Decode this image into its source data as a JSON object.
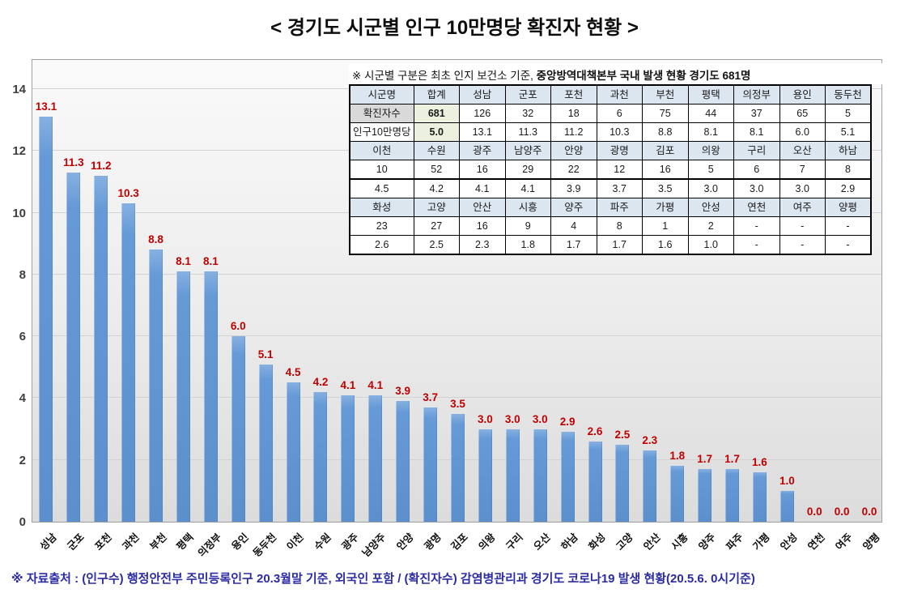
{
  "chart_data": {
    "type": "bar",
    "title": "< 경기도 시군별 인구 10만명당 확진자 현황 >",
    "categories": [
      "성남",
      "군포",
      "포천",
      "과천",
      "부천",
      "평택",
      "의정부",
      "용인",
      "동두천",
      "이천",
      "수원",
      "광주",
      "남양주",
      "안양",
      "광명",
      "김포",
      "의왕",
      "구리",
      "오산",
      "하남",
      "화성",
      "고양",
      "안산",
      "시흥",
      "양주",
      "파주",
      "가평",
      "안성",
      "연천",
      "여주",
      "양평"
    ],
    "values": [
      13.1,
      11.3,
      11.2,
      10.3,
      8.8,
      8.1,
      8.1,
      6.0,
      5.1,
      4.5,
      4.2,
      4.1,
      4.1,
      3.9,
      3.7,
      3.5,
      3.0,
      3.0,
      3.0,
      2.9,
      2.6,
      2.5,
      2.3,
      1.8,
      1.7,
      1.7,
      1.6,
      1.0,
      0.0,
      0.0,
      0.0
    ],
    "value_labels": [
      "13.1",
      "11.3",
      "11.2",
      "10.3",
      "8.8",
      "8.1",
      "8.1",
      "6.0",
      "5.1",
      "4.5",
      "4.2",
      "4.1",
      "4.1",
      "3.9",
      "3.7",
      "3.5",
      "3.0",
      "3.0",
      "3.0",
      "2.9",
      "2.6",
      "2.5",
      "2.3",
      "1.8",
      "1.7",
      "1.7",
      "1.6",
      "1.0",
      "0.0",
      "0.0",
      "0.0"
    ],
    "xlabel": "",
    "ylabel": "",
    "ylim": [
      0,
      15
    ],
    "yticks": [
      0,
      2,
      4,
      6,
      8,
      10,
      12,
      14
    ],
    "grid": true,
    "legend": "none",
    "bar_color": "#5c90cc",
    "value_label_color": "#c00000"
  },
  "table": {
    "note_normal": "※ 시군별 구분은 최초 인지 보건소 기준, ",
    "note_bold": "중앙방역대책본부 국내 발생 현황 경기도 681명",
    "rows": [
      {
        "kind": "city-header",
        "first_is_label": true,
        "cells": [
          "시군명",
          "합계",
          "성남",
          "군포",
          "포천",
          "과천",
          "부천",
          "평택",
          "의정부",
          "용인",
          "동두천"
        ]
      },
      {
        "kind": "data",
        "first_is_label": true,
        "label_gray": true,
        "highlight_col": 1,
        "cells": [
          "확진자수",
          "681",
          "126",
          "32",
          "18",
          "6",
          "75",
          "44",
          "37",
          "65",
          "5"
        ]
      },
      {
        "kind": "data",
        "first_is_label": true,
        "highlight_col": 1,
        "cells": [
          "인구10만명당",
          "5.0",
          "13.1",
          "11.3",
          "11.2",
          "10.3",
          "8.8",
          "8.1",
          "8.1",
          "6.0",
          "5.1"
        ]
      },
      {
        "kind": "city-header",
        "cells": [
          "이천",
          "수원",
          "광주",
          "남양주",
          "안양",
          "광명",
          "김포",
          "의왕",
          "구리",
          "오산",
          "하남"
        ]
      },
      {
        "kind": "data",
        "thick_bottom": true,
        "cells": [
          "10",
          "52",
          "16",
          "29",
          "22",
          "12",
          "16",
          "5",
          "6",
          "7",
          "8"
        ]
      },
      {
        "kind": "data",
        "cells": [
          "4.5",
          "4.2",
          "4.1",
          "4.1",
          "3.9",
          "3.7",
          "3.5",
          "3.0",
          "3.0",
          "3.0",
          "2.9"
        ]
      },
      {
        "kind": "city-header",
        "cells": [
          "화성",
          "고양",
          "안산",
          "시흥",
          "양주",
          "파주",
          "가평",
          "안성",
          "연천",
          "여주",
          "양평"
        ]
      },
      {
        "kind": "data",
        "cells": [
          "23",
          "27",
          "16",
          "9",
          "4",
          "8",
          "1",
          "2",
          "-",
          "-",
          "-"
        ]
      },
      {
        "kind": "data",
        "cells": [
          "2.6",
          "2.5",
          "2.3",
          "1.8",
          "1.7",
          "1.7",
          "1.6",
          "1.0",
          "-",
          "-",
          "-"
        ]
      }
    ]
  },
  "source_note": "※ 자료출처 : (인구수) 행정안전부 주민등록인구 20.3월말 기준, 외국인 포함 / (확진자수) 감염병관리과 경기도 코로나19 발생 현황(20.5.6. 0시기준)"
}
